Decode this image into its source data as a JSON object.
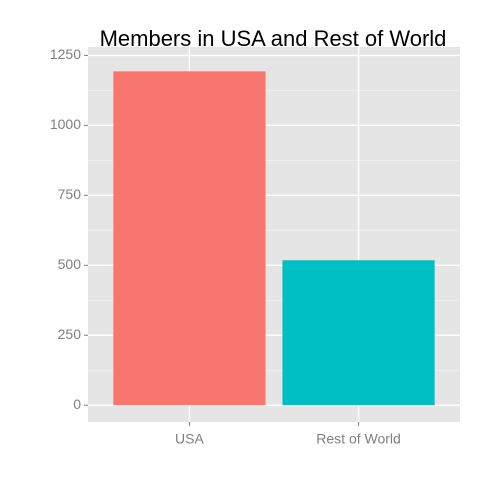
{
  "chart_data": {
    "type": "bar",
    "title": "Members in USA and Rest of World",
    "categories": [
      "USA",
      "Rest of World"
    ],
    "values": [
      1193,
      518
    ],
    "colors": [
      "#F8766D",
      "#00BFC4"
    ],
    "ylim": [
      -60,
      1280
    ],
    "yticks": [
      0,
      250,
      500,
      750,
      1000,
      1250
    ],
    "grid": true
  }
}
